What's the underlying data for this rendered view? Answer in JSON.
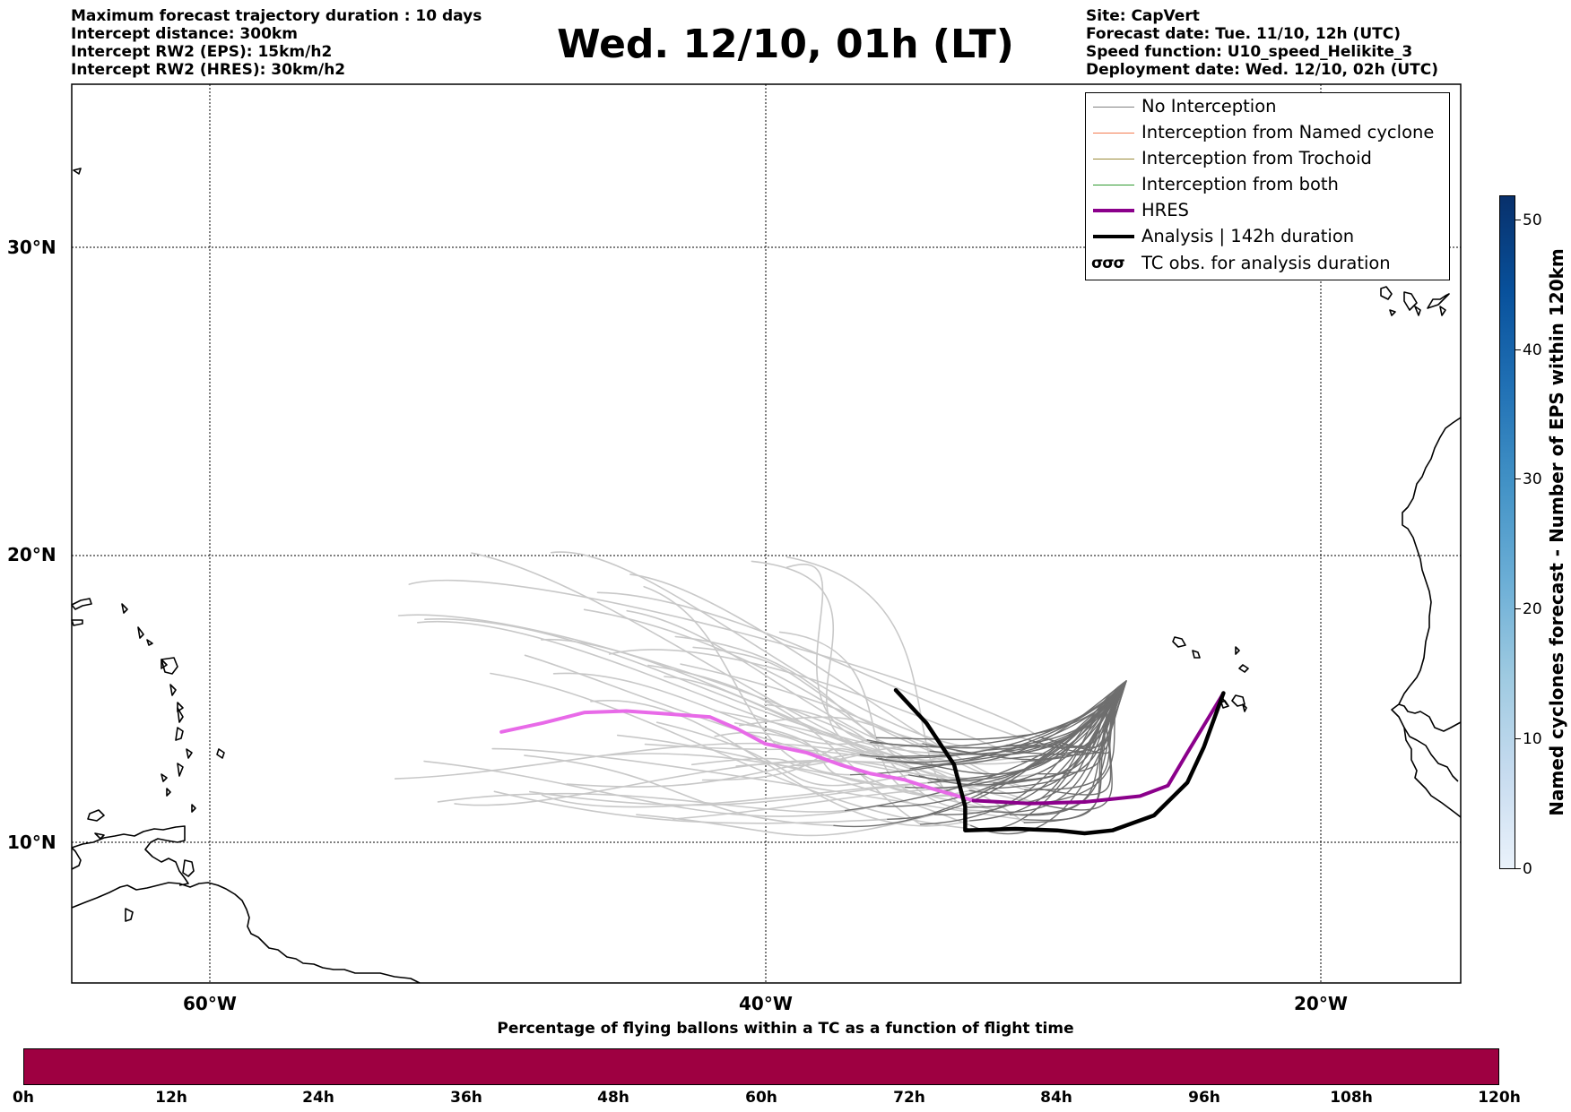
{
  "header_left": [
    "Maximum forecast trajectory duration : 10 days",
    "Intercept distance: 300km",
    "Intercept RW2 (EPS):  15km/h2",
    "Intercept RW2 (HRES): 30km/h2"
  ],
  "title": "Wed. 12/10, 01h (LT)",
  "header_right": [
    "Site: CapVert",
    "Forecast date: Tue. 11/10, 12h (UTC)",
    "Speed function: U10_speed_Helikite_3",
    "Deployment date: Wed. 12/10, 02h (UTC)"
  ],
  "legend": [
    {
      "label": "No Interception",
      "color": "#808080",
      "style": "thin"
    },
    {
      "label": "Interception from Named cyclone",
      "color": "#f47a50",
      "style": "thin"
    },
    {
      "label": "Interception from Trochoid",
      "color": "#9a8a3a",
      "style": "thin"
    },
    {
      "label": "Interception from both",
      "color": "#2e9a2e",
      "style": "thin"
    },
    {
      "label": "HRES",
      "color": "#8b008b",
      "style": "thick"
    },
    {
      "label": "Analysis | 142h duration",
      "color": "#000000",
      "style": "thick"
    },
    {
      "label": "TC obs. for analysis duration",
      "color": "#000000",
      "style": "symbol",
      "symbol": "σσσ"
    }
  ],
  "map": {
    "lat_labels": [
      "30°N",
      "20°N",
      "10°N"
    ],
    "lon_labels": [
      "60°W",
      "40°W",
      "20°W"
    ],
    "grid": "dotted",
    "extent": {
      "lon": [
        -65,
        -15
      ],
      "lat": [
        5.5,
        35
      ]
    },
    "site": {
      "name": "CapVert",
      "lon": -23.5,
      "lat": 15.0
    }
  },
  "tracks": {
    "hres": [
      [
        -49.5,
        13.7
      ],
      [
        -48,
        14.0
      ],
      [
        -46.5,
        14.35
      ],
      [
        -45,
        14.4
      ],
      [
        -43.5,
        14.3
      ],
      [
        -42.0,
        14.2
      ],
      [
        -41,
        13.8
      ],
      [
        -40,
        13.3
      ],
      [
        -38.5,
        13.0
      ],
      [
        -37.3,
        12.6
      ],
      [
        -36.2,
        12.3
      ],
      [
        -35,
        12.1
      ],
      [
        -34,
        11.8
      ],
      [
        -32.5,
        11.4
      ],
      [
        -30.5,
        11.3
      ],
      [
        -28.5,
        11.35
      ],
      [
        -26.5,
        11.55
      ],
      [
        -25.5,
        11.9
      ],
      [
        -24.8,
        13.0
      ],
      [
        -23.5,
        15.0
      ]
    ],
    "analysis": [
      [
        -35.3,
        15.1
      ],
      [
        -34.2,
        14.0
      ],
      [
        -33.2,
        12.6
      ],
      [
        -32.8,
        11.2
      ],
      [
        -32.8,
        10.4
      ],
      [
        -31.0,
        10.45
      ],
      [
        -29.5,
        10.4
      ],
      [
        -28.5,
        10.3
      ],
      [
        -27.5,
        10.4
      ],
      [
        -26.0,
        10.9
      ],
      [
        -24.8,
        12.0
      ],
      [
        -24.2,
        13.2
      ],
      [
        -23.5,
        15.0
      ]
    ]
  },
  "colorbar_right": {
    "title": "Named cyclones forecast - Number of EPS within 120km",
    "ticks": [
      "0",
      "10",
      "20",
      "30",
      "40",
      "50"
    ],
    "colors": [
      "#eaf2fb",
      "#c6dbef",
      "#9ecae1",
      "#6baed6",
      "#4292c6",
      "#2171b5",
      "#08519c",
      "#08306b"
    ]
  },
  "colorbar_bottom": {
    "title": "Percentage of flying ballons within a TC as a function of flight time",
    "ticks": [
      "0h",
      "12h",
      "24h",
      "36h",
      "48h",
      "60h",
      "72h",
      "84h",
      "96h",
      "108h",
      "120h"
    ],
    "fill_color": "#9e0041"
  }
}
